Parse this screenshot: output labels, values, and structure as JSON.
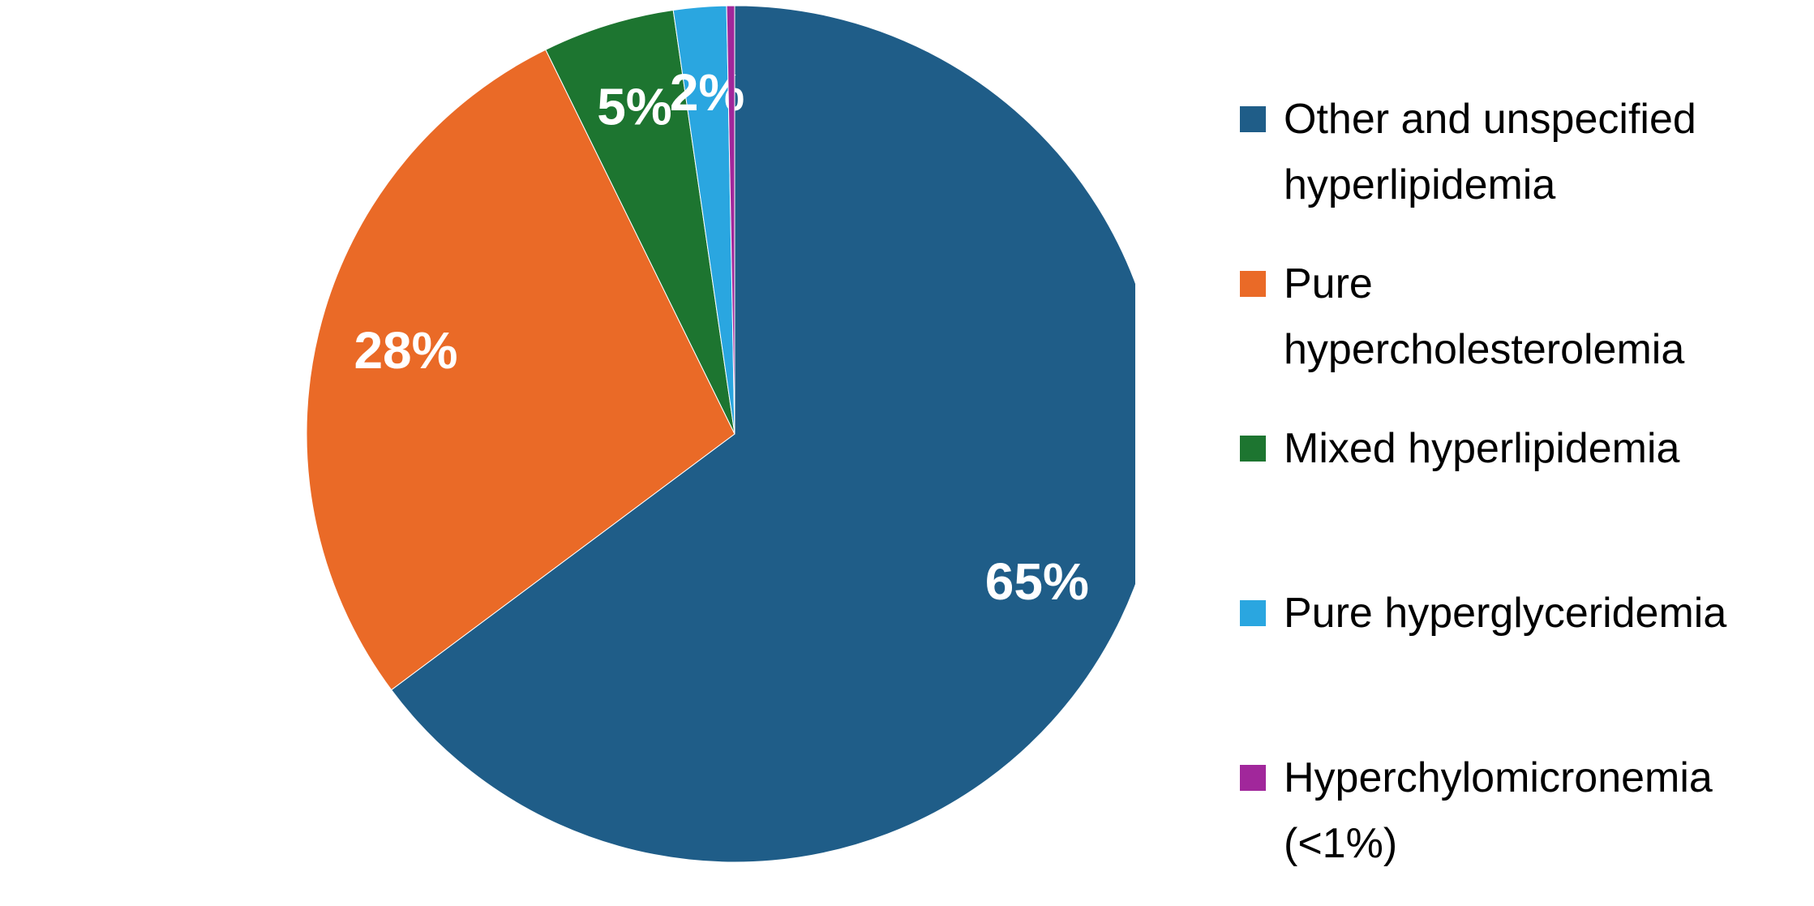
{
  "chart_data": {
    "type": "pie",
    "categories": [
      "Other and unspecified hyperlipidemia",
      "Pure hypercholesterolemia",
      "Mixed hyperlipidemia",
      "Pure hyperglyceridemia",
      "Hyperchylomicronemia (<1%)"
    ],
    "values": [
      65,
      28,
      5,
      2,
      0.3
    ],
    "value_labels": [
      "65%",
      "28%",
      "5%",
      "2%",
      null
    ],
    "colors": [
      "#1f5d88",
      "#ea6a27",
      "#1d7530",
      "#2aa6e0",
      "#a1279b"
    ],
    "legend": "right"
  }
}
